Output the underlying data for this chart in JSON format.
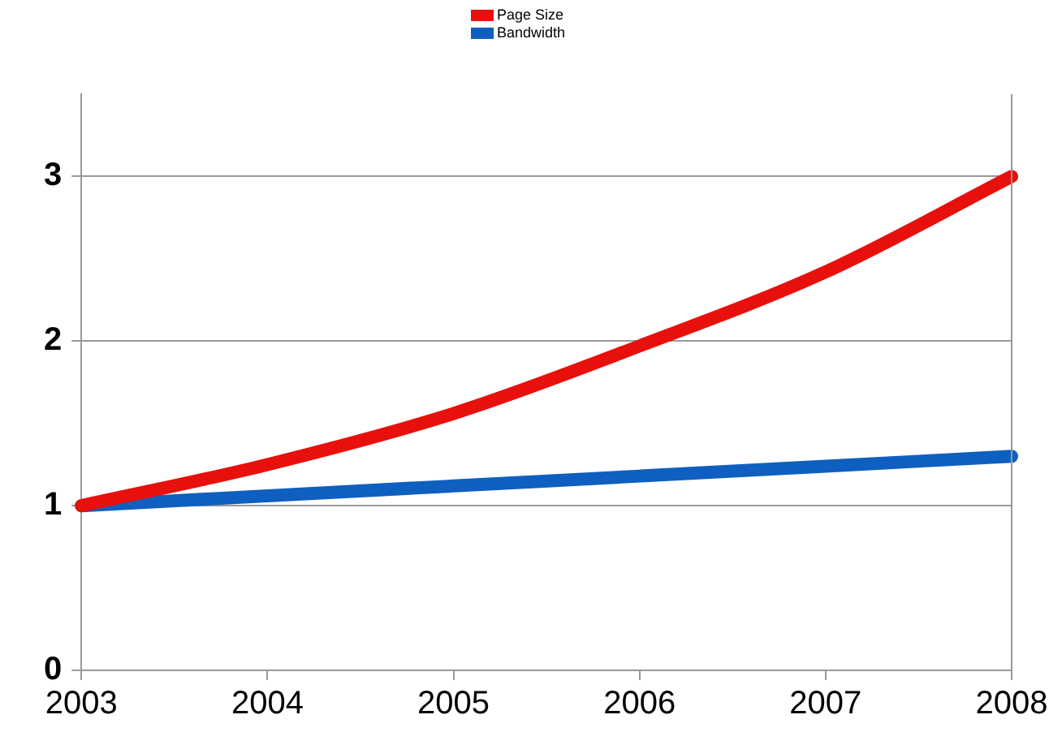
{
  "chart_data": {
    "type": "line",
    "x": [
      2003,
      2004,
      2005,
      2006,
      2007,
      2008
    ],
    "series": [
      {
        "name": "Page Size",
        "color": "#e8100c",
        "values": [
          1,
          1.25,
          1.56,
          1.97,
          2.42,
          3
        ]
      },
      {
        "name": "Bandwidth",
        "color": "#0f5fc0",
        "values": [
          1,
          1.06,
          1.12,
          1.18,
          1.24,
          1.3
        ]
      }
    ],
    "xlim": [
      2003,
      2008
    ],
    "xticks": [
      2003,
      2004,
      2005,
      2006,
      2007,
      2008
    ],
    "ylim": [
      0,
      3.5
    ],
    "yticks": [
      0,
      1,
      2,
      3
    ],
    "grid": "y",
    "legend": "top",
    "marker": "none",
    "line_style": "solid"
  }
}
